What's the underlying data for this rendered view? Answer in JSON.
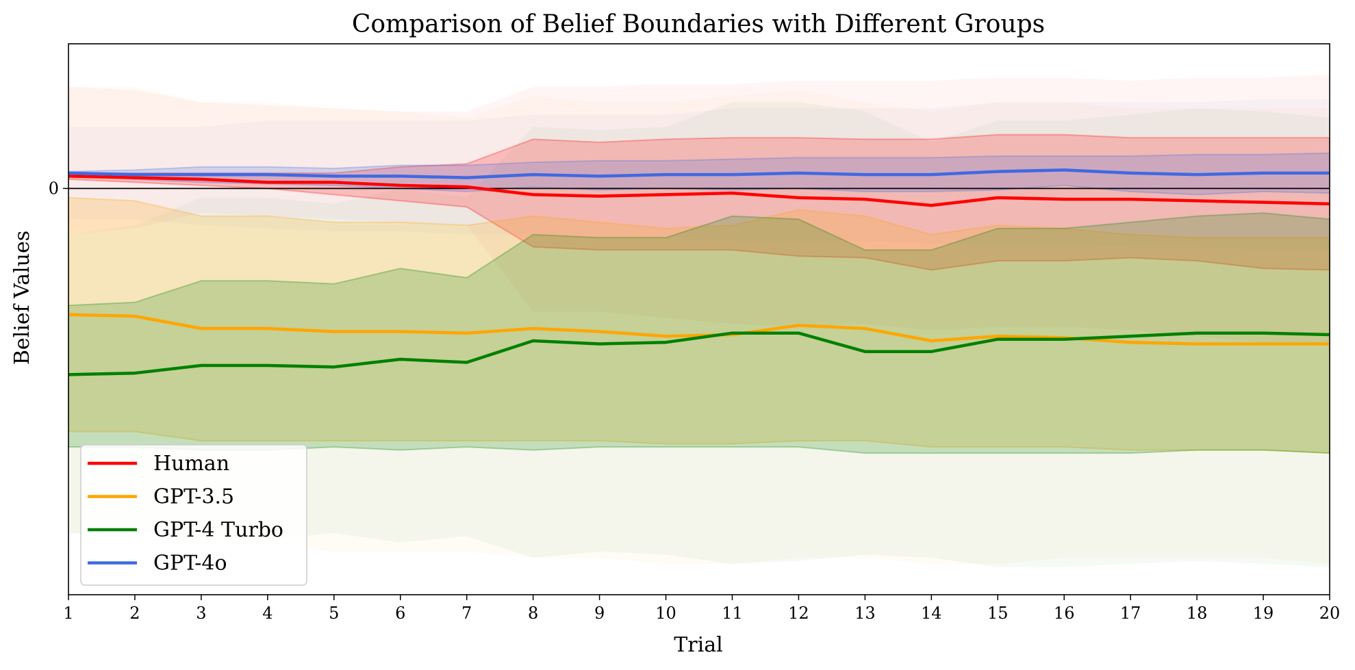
{
  "chart_data": {
    "type": "line",
    "title": "Comparison of Belief Boundaries with Different Groups",
    "xlabel": "Trial",
    "ylabel": "Belief Values",
    "x": [
      1,
      2,
      3,
      4,
      5,
      6,
      7,
      8,
      9,
      10,
      11,
      12,
      13,
      14,
      15,
      16,
      17,
      18,
      19,
      20
    ],
    "xlim": [
      1,
      20
    ],
    "ylim": [
      -1.32,
      0.47
    ],
    "y_ticks": [
      0
    ],
    "grid": false,
    "legend_position": "lower-left",
    "series": [
      {
        "name": "Human",
        "color": "#ff0000",
        "values": [
          0.04,
          0.035,
          0.03,
          0.02,
          0.02,
          0.01,
          0.005,
          -0.02,
          -0.025,
          -0.02,
          -0.015,
          -0.03,
          -0.035,
          -0.055,
          -0.03,
          -0.035,
          -0.035,
          -0.04,
          -0.045,
          -0.05
        ],
        "band_inner": {
          "upper": [
            0.05,
            0.05,
            0.05,
            0.05,
            0.05,
            0.07,
            0.08,
            0.16,
            0.15,
            0.16,
            0.165,
            0.165,
            0.16,
            0.16,
            0.175,
            0.175,
            0.165,
            0.165,
            0.165,
            0.165
          ],
          "lower": [
            0.03,
            0.02,
            0.01,
            0.0,
            -0.02,
            -0.04,
            -0.06,
            -0.19,
            -0.2,
            -0.2,
            -0.2,
            -0.22,
            -0.225,
            -0.265,
            -0.235,
            -0.235,
            -0.225,
            -0.235,
            -0.26,
            -0.265
          ]
        },
        "band_outer": {
          "upper": [
            0.33,
            0.32,
            0.28,
            0.27,
            0.26,
            0.25,
            0.25,
            0.33,
            0.33,
            0.34,
            0.34,
            0.35,
            0.35,
            0.35,
            0.36,
            0.36,
            0.35,
            0.36,
            0.36,
            0.37
          ],
          "lower": [
            -0.15,
            -0.13,
            -0.08,
            -0.09,
            -0.1,
            -0.11,
            -0.12,
            -0.4,
            -0.4,
            -0.42,
            -0.44,
            -0.45,
            -0.44,
            -0.46,
            -0.45,
            -0.45,
            -0.46,
            -0.48,
            -0.5,
            -0.5
          ]
        }
      },
      {
        "name": "GPT-3.5",
        "color": "#ffa500",
        "values": [
          -0.41,
          -0.415,
          -0.455,
          -0.455,
          -0.465,
          -0.465,
          -0.47,
          -0.455,
          -0.465,
          -0.48,
          -0.475,
          -0.445,
          -0.455,
          -0.495,
          -0.48,
          -0.485,
          -0.5,
          -0.505,
          -0.505,
          -0.505
        ],
        "band_inner": {
          "upper": [
            -0.03,
            -0.04,
            -0.09,
            -0.09,
            -0.11,
            -0.11,
            -0.12,
            -0.09,
            -0.11,
            -0.13,
            -0.12,
            -0.07,
            -0.09,
            -0.15,
            -0.12,
            -0.13,
            -0.15,
            -0.16,
            -0.16,
            -0.16
          ],
          "lower": [
            -0.79,
            -0.79,
            -0.82,
            -0.82,
            -0.82,
            -0.82,
            -0.82,
            -0.82,
            -0.82,
            -0.83,
            -0.83,
            -0.82,
            -0.82,
            -0.84,
            -0.84,
            -0.84,
            -0.85,
            -0.85,
            -0.85,
            -0.86
          ]
        },
        "band_outer": {
          "upper": [
            0.33,
            0.33,
            0.28,
            0.28,
            0.26,
            0.25,
            0.23,
            0.3,
            0.28,
            0.28,
            0.3,
            0.32,
            0.28,
            0.25,
            0.28,
            0.28,
            0.26,
            0.26,
            0.26,
            0.26
          ],
          "lower": [
            -1.12,
            -1.12,
            -1.15,
            -1.15,
            -1.18,
            -1.18,
            -1.18,
            -1.2,
            -1.2,
            -1.22,
            -1.22,
            -1.2,
            -1.2,
            -1.22,
            -1.22,
            -1.2,
            -1.2,
            -1.2,
            -1.2,
            -1.22
          ]
        }
      },
      {
        "name": "GPT-4 Turbo",
        "color": "#008000",
        "values": [
          -0.605,
          -0.6,
          -0.575,
          -0.575,
          -0.58,
          -0.555,
          -0.565,
          -0.495,
          -0.505,
          -0.5,
          -0.47,
          -0.47,
          -0.53,
          -0.53,
          -0.49,
          -0.49,
          -0.48,
          -0.47,
          -0.47,
          -0.475
        ],
        "band_inner": {
          "upper": [
            -0.38,
            -0.37,
            -0.3,
            -0.3,
            -0.31,
            -0.26,
            -0.29,
            -0.15,
            -0.16,
            -0.16,
            -0.09,
            -0.1,
            -0.2,
            -0.2,
            -0.13,
            -0.13,
            -0.11,
            -0.09,
            -0.08,
            -0.1
          ],
          "lower": [
            -0.84,
            -0.84,
            -0.85,
            -0.85,
            -0.84,
            -0.85,
            -0.84,
            -0.85,
            -0.84,
            -0.84,
            -0.84,
            -0.84,
            -0.86,
            -0.86,
            -0.86,
            -0.86,
            -0.86,
            -0.85,
            -0.85,
            -0.86
          ]
        },
        "band_outer": {
          "upper": [
            -0.15,
            -0.12,
            -0.03,
            -0.03,
            -0.05,
            0.0,
            -0.03,
            0.2,
            0.19,
            0.2,
            0.28,
            0.28,
            0.25,
            0.15,
            0.22,
            0.22,
            0.24,
            0.26,
            0.25,
            0.23
          ],
          "lower": [
            -1.12,
            -1.12,
            -1.13,
            -1.14,
            -1.12,
            -1.15,
            -1.13,
            -1.2,
            -1.18,
            -1.19,
            -1.22,
            -1.21,
            -1.19,
            -1.2,
            -1.23,
            -1.23,
            -1.22,
            -1.21,
            -1.22,
            -1.23
          ]
        }
      },
      {
        "name": "GPT-4o",
        "color": "#4169e1",
        "values": [
          0.05,
          0.045,
          0.045,
          0.045,
          0.04,
          0.04,
          0.035,
          0.045,
          0.04,
          0.045,
          0.045,
          0.05,
          0.045,
          0.045,
          0.055,
          0.06,
          0.05,
          0.045,
          0.05,
          0.05
        ],
        "band_inner": {
          "upper": [
            0.055,
            0.06,
            0.07,
            0.07,
            0.065,
            0.075,
            0.075,
            0.085,
            0.09,
            0.09,
            0.095,
            0.1,
            0.1,
            0.1,
            0.105,
            0.105,
            0.105,
            0.11,
            0.11,
            0.115
          ],
          "lower": [
            0.045,
            0.03,
            0.02,
            0.015,
            0.01,
            0.0,
            -0.01,
            0.005,
            -0.005,
            0.0,
            -0.005,
            0.0,
            -0.01,
            -0.01,
            -0.005,
            0.01,
            -0.01,
            -0.02,
            -0.01,
            -0.015
          ]
        },
        "band_outer": {
          "upper": [
            0.2,
            0.2,
            0.2,
            0.22,
            0.22,
            0.22,
            0.22,
            0.24,
            0.24,
            0.24,
            0.26,
            0.26,
            0.26,
            0.26,
            0.28,
            0.28,
            0.28,
            0.28,
            0.29,
            0.29
          ],
          "lower": [
            -0.1,
            -0.1,
            -0.12,
            -0.13,
            -0.14,
            -0.14,
            -0.15,
            -0.15,
            -0.16,
            -0.16,
            -0.17,
            -0.17,
            -0.17,
            -0.18,
            -0.18,
            -0.18,
            -0.19,
            -0.19,
            -0.2,
            -0.2
          ]
        }
      }
    ]
  }
}
